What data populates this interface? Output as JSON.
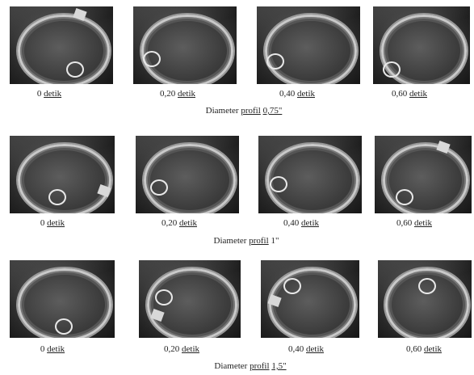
{
  "rows": [
    {
      "title_prefix": "Diameter",
      "title_word": "profil",
      "title_value": "0,75\"",
      "frames": [
        {
          "value": "0",
          "unit": "detik"
        },
        {
          "value": "0,20",
          "unit": "detik"
        },
        {
          "value": "0,40",
          "unit": "detik"
        },
        {
          "value": "0,60",
          "unit": "detik"
        }
      ]
    },
    {
      "title_prefix": "Diameter",
      "title_word": "profil",
      "title_value": "1\"",
      "frames": [
        {
          "value": "0",
          "unit": "detik"
        },
        {
          "value": "0,20",
          "unit": "detik"
        },
        {
          "value": "0,40",
          "unit": "detik"
        },
        {
          "value": "0,60",
          "unit": "detik"
        }
      ]
    },
    {
      "title_prefix": "Diameter",
      "title_word": "profil",
      "title_value": "1,5\"",
      "frames": [
        {
          "value": "0",
          "unit": "detik"
        },
        {
          "value": "0,20",
          "unit": "detik"
        },
        {
          "value": "0,40",
          "unit": "detik"
        },
        {
          "value": "0,60",
          "unit": "detik"
        }
      ]
    }
  ]
}
